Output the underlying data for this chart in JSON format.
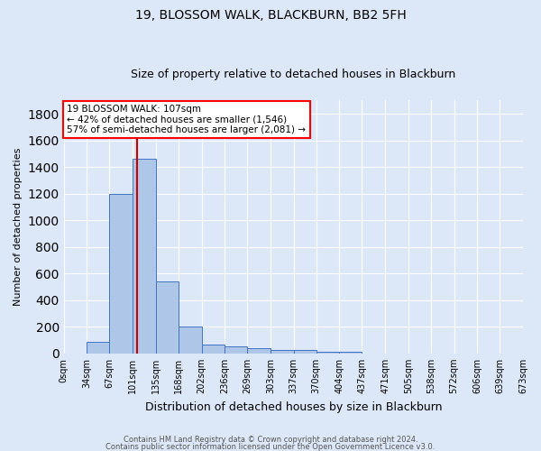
{
  "title": "19, BLOSSOM WALK, BLACKBURN, BB2 5FH",
  "subtitle": "Size of property relative to detached houses in Blackburn",
  "xlabel": "Distribution of detached houses by size in Blackburn",
  "ylabel": "Number of detached properties",
  "footnote1": "Contains HM Land Registry data © Crown copyright and database right 2024.",
  "footnote2": "Contains public sector information licensed under the Open Government Licence v3.0.",
  "bin_labels": [
    "0sqm",
    "34sqm",
    "67sqm",
    "101sqm",
    "135sqm",
    "168sqm",
    "202sqm",
    "236sqm",
    "269sqm",
    "303sqm",
    "337sqm",
    "370sqm",
    "404sqm",
    "437sqm",
    "471sqm",
    "505sqm",
    "538sqm",
    "572sqm",
    "606sqm",
    "639sqm",
    "673sqm"
  ],
  "bin_edges": [
    0,
    34,
    67,
    101,
    135,
    168,
    202,
    236,
    269,
    303,
    337,
    370,
    404,
    437,
    471,
    505,
    538,
    572,
    606,
    639,
    673
  ],
  "bar_heights": [
    0,
    90,
    1200,
    1460,
    540,
    205,
    65,
    50,
    40,
    25,
    25,
    10,
    10,
    0,
    0,
    0,
    0,
    0,
    0,
    0
  ],
  "bar_color": "#aec6e8",
  "bar_edge_color": "#4472c4",
  "bg_color": "#dce8f8",
  "grid_color": "#ffffff",
  "vline_x": 107,
  "vline_color": "#cc0000",
  "annotation_line1": "19 BLOSSOM WALK: 107sqm",
  "annotation_line2": "← 42% of detached houses are smaller (1,546)",
  "annotation_line3": "57% of semi-detached houses are larger (2,081) →",
  "ylim": [
    0,
    1900
  ],
  "yticks": [
    0,
    200,
    400,
    600,
    800,
    1000,
    1200,
    1400,
    1600,
    1800
  ],
  "title_fontsize": 10,
  "subtitle_fontsize": 9,
  "ylabel_fontsize": 8,
  "xlabel_fontsize": 9
}
